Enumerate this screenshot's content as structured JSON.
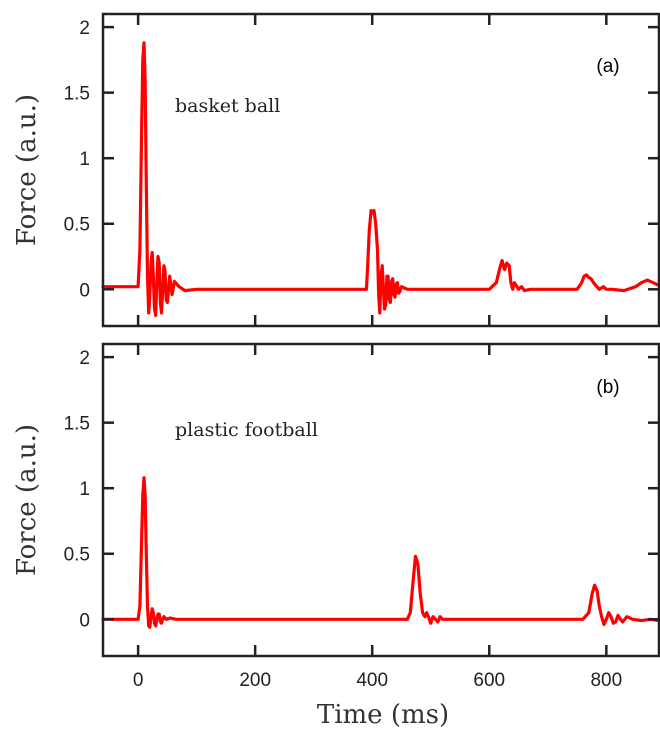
{
  "colors": {
    "trace": "#ff0000",
    "axes": "#222222"
  },
  "chart_data": [
    {
      "type": "line",
      "panel_label": "(a)",
      "annotation": "basket ball",
      "xlabel": "",
      "ylabel": "Force (a.u.)",
      "xlim": [
        -60,
        890
      ],
      "ylim": [
        -0.28,
        2.1
      ],
      "xticks": [
        0,
        200,
        400,
        600,
        800
      ],
      "yticks": [
        0,
        0.5,
        1,
        1.5,
        2
      ],
      "ytick_labels": [
        "0",
        "0.5",
        "1",
        "1.5",
        "2"
      ],
      "grid": false,
      "series": [
        {
          "x": [
            -60,
            -30,
            0,
            3,
            6,
            8,
            10,
            12,
            14,
            16,
            18,
            20,
            22,
            24,
            26,
            28,
            30,
            32,
            34,
            36,
            38,
            40,
            42,
            44,
            46,
            48,
            50,
            54,
            58,
            62,
            70,
            80,
            100,
            150,
            200,
            250,
            300,
            350,
            390,
            392,
            395,
            398,
            400,
            403,
            406,
            409,
            411,
            413,
            415,
            417,
            419,
            421,
            423,
            425,
            427,
            429,
            431,
            433,
            435,
            437,
            439,
            441,
            443,
            445,
            447,
            450,
            455,
            460,
            470,
            490,
            520,
            560,
            600,
            612,
            618,
            622,
            626,
            630,
            634,
            637,
            640,
            643,
            646,
            650,
            655,
            660,
            670,
            690,
            720,
            750,
            758,
            762,
            766,
            770,
            774,
            778,
            782,
            788,
            795,
            800,
            810,
            830,
            850,
            860,
            870,
            880,
            890
          ],
          "y": [
            0.02,
            0.02,
            0.02,
            0.3,
            1.2,
            1.75,
            1.88,
            1.6,
            0.8,
            0.1,
            -0.18,
            -0.05,
            0.2,
            0.28,
            0.1,
            -0.15,
            -0.2,
            0.05,
            0.25,
            0.2,
            -0.1,
            -0.18,
            0.0,
            0.18,
            0.14,
            -0.08,
            -0.1,
            0.1,
            -0.04,
            0.06,
            0.02,
            -0.01,
            0.0,
            0.0,
            0.0,
            0.0,
            0.0,
            0.0,
            0.0,
            0.15,
            0.45,
            0.6,
            0.58,
            0.6,
            0.5,
            0.3,
            -0.05,
            -0.18,
            0.1,
            0.18,
            0.02,
            -0.15,
            -0.12,
            0.1,
            0.1,
            -0.08,
            -0.1,
            0.06,
            0.08,
            -0.04,
            -0.06,
            0.04,
            0.05,
            -0.03,
            -0.02,
            0.02,
            0.01,
            0.0,
            0.0,
            0.0,
            0.0,
            0.0,
            0.0,
            0.05,
            0.16,
            0.22,
            0.15,
            0.2,
            0.18,
            0.05,
            0.0,
            0.05,
            0.03,
            0.0,
            0.02,
            -0.01,
            0.0,
            0.0,
            0.0,
            0.0,
            0.05,
            0.1,
            0.11,
            0.09,
            0.08,
            0.05,
            0.03,
            0.0,
            0.02,
            0.0,
            0.0,
            -0.01,
            0.02,
            0.05,
            0.07,
            0.05,
            0.03
          ]
        }
      ]
    },
    {
      "type": "line",
      "panel_label": "(b)",
      "annotation": "plastic football",
      "xlabel": "Time (ms)",
      "ylabel": "Force (a.u.)",
      "xlim": [
        -60,
        890
      ],
      "ylim": [
        -0.28,
        2.1
      ],
      "xticks": [
        0,
        200,
        400,
        600,
        800
      ],
      "xtick_labels": [
        "0",
        "200",
        "400",
        "600",
        "800"
      ],
      "yticks": [
        0,
        0.5,
        1,
        1.5,
        2
      ],
      "ytick_labels": [
        "0",
        "0.5",
        "1",
        "1.5",
        "2"
      ],
      "grid": false,
      "series": [
        {
          "x": [
            -60,
            -30,
            0,
            3,
            6,
            8,
            10,
            12,
            14,
            16,
            18,
            20,
            22,
            24,
            26,
            28,
            30,
            32,
            34,
            36,
            38,
            40,
            42,
            44,
            48,
            55,
            65,
            80,
            120,
            200,
            300,
            400,
            460,
            465,
            470,
            474,
            478,
            482,
            486,
            490,
            493,
            496,
            500,
            504,
            508,
            512,
            516,
            520,
            530,
            560,
            600,
            700,
            760,
            770,
            776,
            780,
            784,
            788,
            792,
            796,
            800,
            804,
            808,
            812,
            816,
            820,
            824,
            828,
            835,
            845,
            860,
            875,
            890
          ],
          "y": [
            0.0,
            0.0,
            0.0,
            0.1,
            0.6,
            0.95,
            1.08,
            0.95,
            0.5,
            0.1,
            -0.05,
            -0.06,
            0.02,
            0.08,
            0.05,
            -0.03,
            -0.05,
            0.0,
            0.04,
            0.04,
            -0.02,
            -0.03,
            0.0,
            0.02,
            0.0,
            0.01,
            0.0,
            0.0,
            0.0,
            0.0,
            0.0,
            0.0,
            0.0,
            0.05,
            0.3,
            0.48,
            0.42,
            0.2,
            0.05,
            0.02,
            0.05,
            0.02,
            -0.03,
            0.02,
            0.0,
            -0.02,
            0.02,
            0.0,
            0.0,
            0.0,
            0.0,
            0.0,
            0.0,
            0.05,
            0.2,
            0.26,
            0.22,
            0.1,
            0.02,
            -0.04,
            0.0,
            0.05,
            0.02,
            -0.03,
            -0.02,
            0.03,
            0.0,
            -0.02,
            0.02,
            0.0,
            -0.01,
            0.0,
            -0.01
          ]
        }
      ]
    }
  ]
}
